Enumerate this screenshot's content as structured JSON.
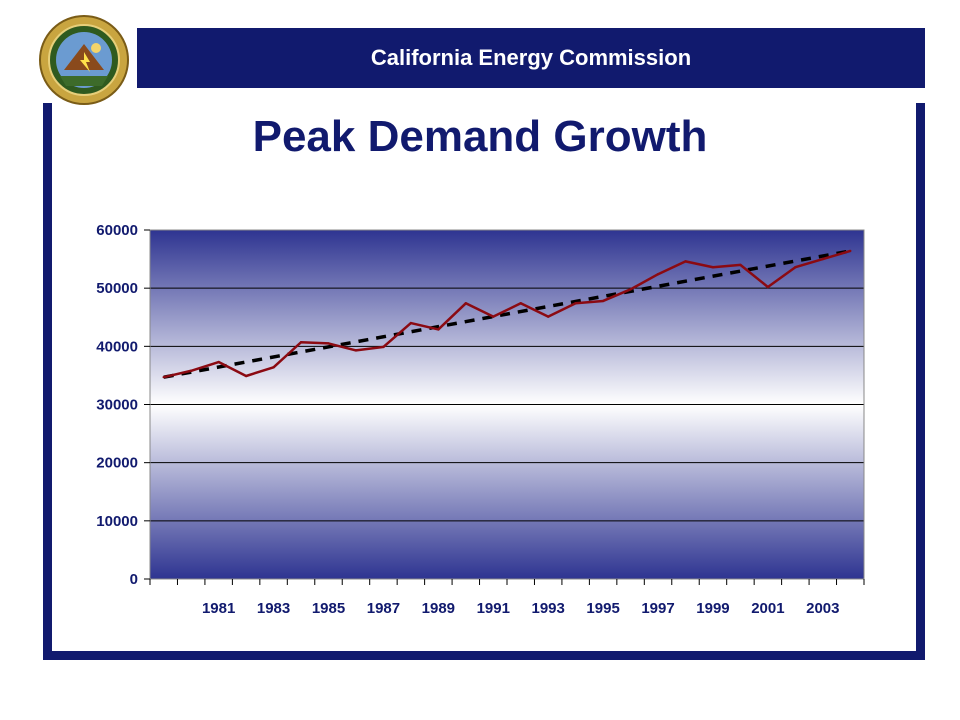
{
  "header": {
    "title": "California Energy Commission"
  },
  "slide": {
    "title": "Peak Demand Growth"
  },
  "seal": {
    "name": "state-seal-icon"
  },
  "colors": {
    "brand": "#111a6e",
    "series": "#8b0a12",
    "trend": "#000000"
  },
  "chart_data": {
    "type": "line",
    "title": "",
    "xlabel": "",
    "ylabel": "",
    "ylim": [
      0,
      60000
    ],
    "yticks": [
      "0",
      "10000",
      "20000",
      "30000",
      "40000",
      "50000",
      "60000"
    ],
    "xtick_labels": [
      "1981",
      "1983",
      "1985",
      "1987",
      "1989",
      "1991",
      "1993",
      "1995",
      "1997",
      "1999",
      "2001",
      "2003"
    ],
    "grid": true,
    "x": [
      1979,
      1980,
      1981,
      1982,
      1983,
      1984,
      1985,
      1986,
      1987,
      1988,
      1989,
      1990,
      1991,
      1992,
      1993,
      1994,
      1995,
      1996,
      1997,
      1998,
      1999,
      2000,
      2001,
      2002,
      2003,
      2004
    ],
    "series": [
      {
        "values": [
          34700,
          35800,
          37300,
          34900,
          36400,
          40700,
          40500,
          39300,
          39900,
          44000,
          42900,
          47400,
          45100,
          47400,
          45100,
          47400,
          47800,
          49800,
          52400,
          54600,
          53600,
          54000,
          50200,
          53600,
          55000,
          56400
        ]
      }
    ],
    "trendline": {
      "style": "dashed",
      "start": 34700,
      "end": 56400
    }
  }
}
